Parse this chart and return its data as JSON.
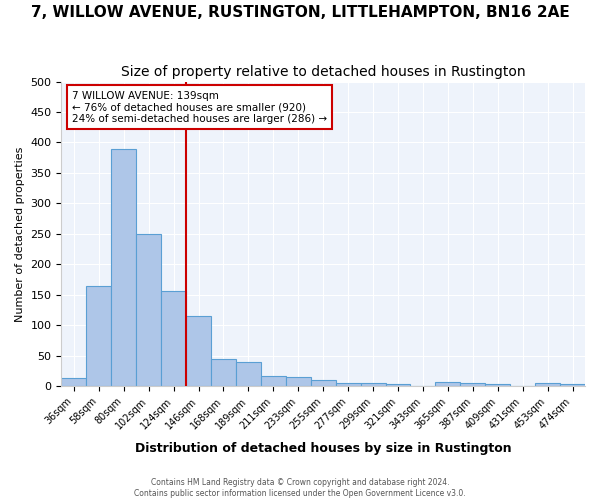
{
  "title": "7, WILLOW AVENUE, RUSTINGTON, LITTLEHAMPTON, BN16 2AE",
  "subtitle": "Size of property relative to detached houses in Rustington",
  "xlabel": "Distribution of detached houses by size in Rustington",
  "ylabel": "Number of detached properties",
  "categories": [
    "36sqm",
    "58sqm",
    "80sqm",
    "102sqm",
    "124sqm",
    "146sqm",
    "168sqm",
    "189sqm",
    "211sqm",
    "233sqm",
    "255sqm",
    "277sqm",
    "299sqm",
    "321sqm",
    "343sqm",
    "365sqm",
    "387sqm",
    "409sqm",
    "431sqm",
    "453sqm",
    "474sqm"
  ],
  "values": [
    13,
    165,
    390,
    250,
    157,
    115,
    44,
    40,
    17,
    15,
    10,
    6,
    5,
    4,
    0,
    7,
    5,
    3,
    0,
    5,
    4
  ],
  "bar_color": "#aec6e8",
  "bar_edge_color": "#5a9fd4",
  "vline_color": "#cc0000",
  "annotation_text": "7 WILLOW AVENUE: 139sqm\n← 76% of detached houses are smaller (920)\n24% of semi-detached houses are larger (286) →",
  "annotation_box_color": "#ffffff",
  "annotation_box_edge": "#cc0000",
  "ylim": [
    0,
    500
  ],
  "yticks": [
    0,
    50,
    100,
    150,
    200,
    250,
    300,
    350,
    400,
    450,
    500
  ],
  "bg_color": "#eef3fb",
  "footer1": "Contains HM Land Registry data © Crown copyright and database right 2024.",
  "footer2": "Contains public sector information licensed under the Open Government Licence v3.0.",
  "title_fontsize": 11,
  "subtitle_fontsize": 10
}
